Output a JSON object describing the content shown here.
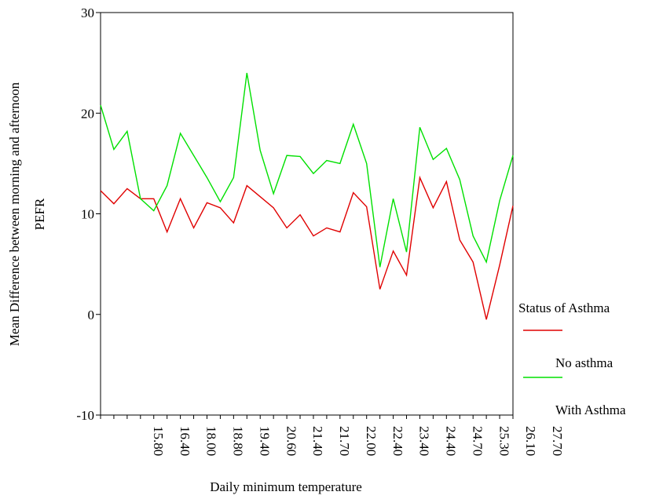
{
  "chart_data": {
    "type": "line",
    "ylabel": [
      "Mean Difference between morning and afternoon",
      "PEFR"
    ],
    "xlabel": "Daily minimum temperature",
    "categories": [
      null,
      "15.80",
      null,
      "16.40",
      null,
      "18.00",
      null,
      "18.80",
      null,
      "19.40",
      null,
      "20.60",
      null,
      "21.40",
      null,
      "21.70",
      null,
      "22.00",
      null,
      "22.40",
      null,
      "23.40",
      null,
      "24.40",
      null,
      "24.70",
      null,
      "25.30",
      null,
      "26.10",
      null,
      "27.70"
    ],
    "series": [
      {
        "name": "No asthma",
        "color": "#e00000",
        "values": [
          12.3,
          11,
          12.5,
          11.5,
          11.5,
          8.2,
          11.5,
          8.6,
          11.1,
          10.6,
          9.1,
          12.8,
          11.7,
          10.6,
          8.6,
          9.9,
          7.8,
          8.6,
          8.2,
          12.1,
          10.7,
          2.5,
          6.3,
          3.9,
          13.6,
          10.6,
          13.2,
          7.4,
          5.2,
          -0.5,
          4.9,
          10.8
        ]
      },
      {
        "name": "With Asthma",
        "color": "#00e000",
        "values": [
          20.8,
          16.4,
          18.2,
          11.5,
          10.3,
          12.8,
          18,
          15.8,
          13.6,
          11.2,
          13.6,
          24,
          16.3,
          12,
          15.8,
          15.7,
          14,
          15.3,
          15,
          18.9,
          15,
          4.7,
          11.5,
          6.2,
          18.6,
          15.4,
          16.5,
          13.4,
          7.8,
          5.2,
          11.3,
          15.8
        ]
      }
    ],
    "legend_title": "Status of Asthma",
    "ylim": [
      -10,
      30
    ],
    "yticks": [
      -10,
      0,
      10,
      20,
      30
    ]
  }
}
